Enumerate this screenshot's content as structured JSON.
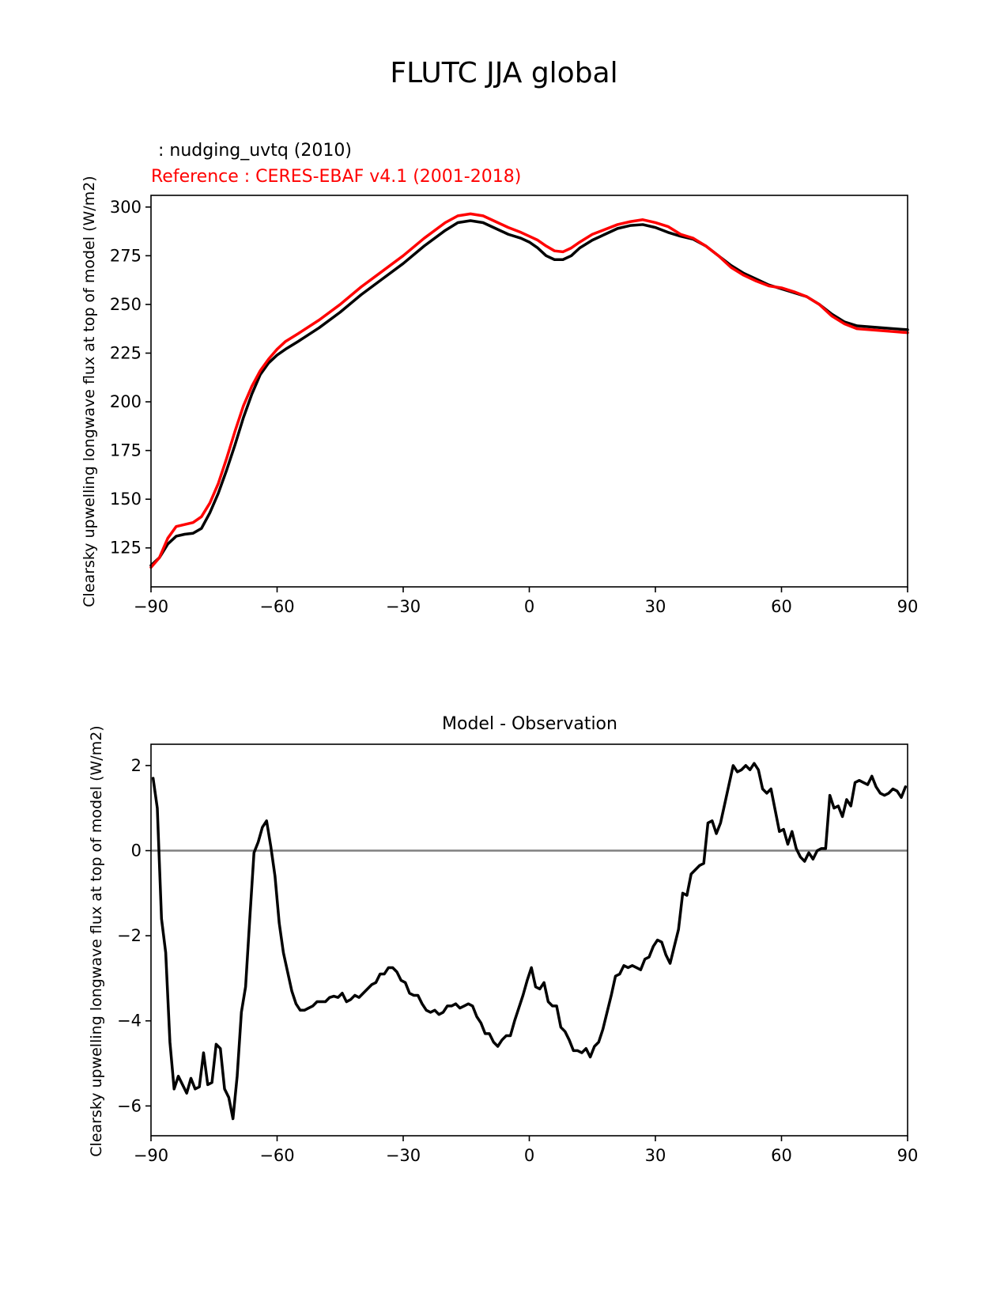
{
  "figure": {
    "title": "FLUTC JJA global",
    "test_label": " : nudging_uvtq (2010)",
    "reference_label": "Reference : CERES-EBAF v4.1 (2001-2018)"
  },
  "colors": {
    "test": "#000000",
    "reference": "#ff0000",
    "zero_line": "#808080",
    "axis": "#000000"
  },
  "chart_data": [
    {
      "type": "line",
      "title": "",
      "xlabel": "",
      "ylabel": "Clearsky upwelling longwave flux at top of model (W/m2)",
      "xlim": [
        -90,
        90
      ],
      "ylim": [
        105,
        306
      ],
      "xticks": [
        -90,
        -60,
        -30,
        0,
        30,
        60,
        90
      ],
      "xtick_labels": [
        "−90",
        "−60",
        "−30",
        "0",
        "30",
        "60",
        "90"
      ],
      "yticks": [
        125,
        150,
        175,
        200,
        225,
        250,
        275,
        300
      ],
      "ytick_labels": [
        "125",
        "150",
        "175",
        "200",
        "225",
        "250",
        "275",
        "300"
      ],
      "series": [
        {
          "name": "nudging_uvtq (2010)",
          "color": "#000000",
          "x": [
            -90,
            -88,
            -86,
            -84,
            -82,
            -80,
            -78,
            -76,
            -74,
            -72,
            -70,
            -68,
            -66,
            -64,
            -62,
            -60,
            -58,
            -55,
            -50,
            -45,
            -40,
            -35,
            -30,
            -25,
            -20,
            -17,
            -14,
            -11,
            -8,
            -5,
            -2,
            0,
            2,
            4,
            6,
            8,
            10,
            12,
            15,
            18,
            21,
            24,
            27,
            30,
            33,
            36,
            39,
            42,
            45,
            48,
            51,
            54,
            57,
            60,
            63,
            66,
            69,
            72,
            75,
            78,
            81,
            84,
            87,
            90
          ],
          "values": [
            116,
            120,
            127,
            131,
            132,
            132.5,
            135,
            143,
            153,
            165,
            178,
            192,
            204,
            214,
            220,
            224,
            227,
            231,
            238,
            246,
            255,
            263,
            271,
            280,
            288,
            292,
            293,
            292,
            289,
            286,
            284,
            282,
            279,
            275,
            273,
            273,
            275,
            279,
            283,
            286,
            289,
            290.5,
            291,
            289.5,
            287,
            285,
            283.5,
            280,
            275,
            270,
            266,
            263,
            260,
            258,
            256,
            254,
            250,
            245,
            241,
            239,
            238.5,
            238,
            237.5,
            237
          ]
        },
        {
          "name": "CERES-EBAF v4.1 (2001-2018)",
          "color": "#ff0000",
          "x": [
            -90,
            -88,
            -86,
            -84,
            -82,
            -80,
            -78,
            -76,
            -74,
            -72,
            -70,
            -68,
            -66,
            -64,
            -62,
            -60,
            -58,
            -55,
            -50,
            -45,
            -40,
            -35,
            -30,
            -25,
            -20,
            -17,
            -14,
            -11,
            -8,
            -5,
            -2,
            0,
            2,
            4,
            6,
            8,
            10,
            12,
            15,
            18,
            21,
            24,
            27,
            30,
            33,
            36,
            39,
            42,
            45,
            48,
            51,
            54,
            57,
            60,
            63,
            66,
            69,
            72,
            75,
            78,
            81,
            84,
            87,
            90
          ],
          "values": [
            115,
            120,
            130,
            136,
            137,
            138,
            141,
            148,
            158,
            171,
            185,
            198,
            208,
            216,
            222,
            227,
            231,
            235,
            242,
            250,
            259,
            267,
            275,
            284,
            292,
            295.5,
            296.5,
            295.5,
            292.5,
            289.5,
            287,
            285,
            283,
            280,
            277.5,
            277,
            279,
            282,
            286,
            288.5,
            291,
            292.5,
            293.5,
            292,
            290,
            286,
            284,
            280,
            275,
            269,
            265,
            262,
            259.5,
            258.5,
            256.5,
            254,
            250,
            244,
            240,
            237.5,
            237,
            236.5,
            236,
            235.5
          ]
        }
      ]
    },
    {
      "type": "line",
      "title": "Model - Observation",
      "xlabel": "",
      "ylabel": "Clearsky upwelling longwave flux at top of model (W/m2)",
      "xlim": [
        -90,
        90
      ],
      "ylim": [
        -6.7,
        2.5
      ],
      "xticks": [
        -90,
        -60,
        -30,
        0,
        30,
        60,
        90
      ],
      "xtick_labels": [
        "−90",
        "−60",
        "−30",
        "0",
        "30",
        "60",
        "90"
      ],
      "yticks": [
        -6,
        -4,
        -2,
        0,
        2
      ],
      "ytick_labels": [
        "−6",
        "−4",
        "−2",
        "0",
        "2"
      ],
      "zero_line": 0,
      "series": [
        {
          "name": "Model - Observation",
          "color": "#000000",
          "x": [
            -89.5,
            -88.5,
            -87.5,
            -86.5,
            -85.5,
            -84.5,
            -83.5,
            -82.5,
            -81.5,
            -80.5,
            -79.5,
            -78.5,
            -77.5,
            -76.5,
            -75.5,
            -74.5,
            -73.5,
            -72.5,
            -71.5,
            -70.5,
            -69.5,
            -68.5,
            -67.5,
            -66.5,
            -65.5,
            -64.5,
            -63.5,
            -62.5,
            -61.5,
            -60.5,
            -59.5,
            -58.5,
            -57.5,
            -56.5,
            -55.5,
            -54.5,
            -53.5,
            -52.5,
            -51.5,
            -50.5,
            -49.5,
            -48.5,
            -47.5,
            -46.5,
            -45.5,
            -44.5,
            -43.5,
            -42.5,
            -41.5,
            -40.5,
            -39.5,
            -38.5,
            -37.5,
            -36.5,
            -35.5,
            -34.5,
            -33.5,
            -32.5,
            -31.5,
            -30.5,
            -29.5,
            -28.5,
            -27.5,
            -26.5,
            -25.5,
            -24.5,
            -23.5,
            -22.5,
            -21.5,
            -20.5,
            -19.5,
            -18.5,
            -17.5,
            -16.5,
            -15.5,
            -14.5,
            -13.5,
            -12.5,
            -11.5,
            -10.5,
            -9.5,
            -8.5,
            -7.5,
            -6.5,
            -5.5,
            -4.5,
            -3.5,
            -2.5,
            -1.5,
            -0.5,
            0.5,
            1.5,
            2.5,
            3.5,
            4.5,
            5.5,
            6.5,
            7.5,
            8.5,
            9.5,
            10.5,
            11.5,
            12.5,
            13.5,
            14.5,
            15.5,
            16.5,
            17.5,
            18.5,
            19.5,
            20.5,
            21.5,
            22.5,
            23.5,
            24.5,
            25.5,
            26.5,
            27.5,
            28.5,
            29.5,
            30.5,
            31.5,
            32.5,
            33.5,
            34.5,
            35.5,
            36.5,
            37.5,
            38.5,
            39.5,
            40.5,
            41.5,
            42.5,
            43.5,
            44.5,
            45.5,
            46.5,
            47.5,
            48.5,
            49.5,
            50.5,
            51.5,
            52.5,
            53.5,
            54.5,
            55.5,
            56.5,
            57.5,
            58.5,
            59.5,
            60.5,
            61.5,
            62.5,
            63.5,
            64.5,
            65.5,
            66.5,
            67.5,
            68.5,
            69.5,
            70.5,
            71.5,
            72.5,
            73.5,
            74.5,
            75.5,
            76.5,
            77.5,
            78.5,
            79.5,
            80.5,
            81.5,
            82.5,
            83.5,
            84.5,
            85.5,
            86.5,
            87.5,
            88.5,
            89.5
          ],
          "values": [
            1.7,
            1.0,
            -1.6,
            -2.4,
            -4.5,
            -5.6,
            -5.3,
            -5.5,
            -5.7,
            -5.35,
            -5.6,
            -5.55,
            -4.75,
            -5.5,
            -5.45,
            -4.55,
            -4.65,
            -5.6,
            -5.8,
            -6.3,
            -5.3,
            -3.8,
            -3.2,
            -1.6,
            -0.05,
            0.2,
            0.55,
            0.7,
            0.1,
            -0.6,
            -1.7,
            -2.4,
            -2.85,
            -3.3,
            -3.6,
            -3.75,
            -3.75,
            -3.7,
            -3.65,
            -3.55,
            -3.55,
            -3.55,
            -3.45,
            -3.42,
            -3.45,
            -3.35,
            -3.55,
            -3.5,
            -3.4,
            -3.45,
            -3.35,
            -3.25,
            -3.15,
            -3.1,
            -2.9,
            -2.9,
            -2.75,
            -2.75,
            -2.85,
            -3.05,
            -3.1,
            -3.35,
            -3.4,
            -3.4,
            -3.6,
            -3.75,
            -3.8,
            -3.75,
            -3.85,
            -3.8,
            -3.65,
            -3.65,
            -3.6,
            -3.7,
            -3.65,
            -3.6,
            -3.65,
            -3.9,
            -4.05,
            -4.3,
            -4.3,
            -4.5,
            -4.6,
            -4.45,
            -4.35,
            -4.35,
            -4.0,
            -3.7,
            -3.4,
            -3.05,
            -2.75,
            -3.2,
            -3.25,
            -3.1,
            -3.55,
            -3.65,
            -3.65,
            -4.15,
            -4.25,
            -4.45,
            -4.7,
            -4.7,
            -4.75,
            -4.65,
            -4.85,
            -4.6,
            -4.5,
            -4.2,
            -3.8,
            -3.4,
            -2.95,
            -2.9,
            -2.7,
            -2.75,
            -2.7,
            -2.75,
            -2.8,
            -2.55,
            -2.5,
            -2.25,
            -2.1,
            -2.15,
            -2.45,
            -2.65,
            -2.25,
            -1.85,
            -1.0,
            -1.05,
            -0.55,
            -0.45,
            -0.35,
            -0.3,
            0.65,
            0.7,
            0.4,
            0.65,
            1.1,
            1.55,
            2.0,
            1.85,
            1.9,
            2.0,
            1.9,
            2.05,
            1.9,
            1.45,
            1.35,
            1.45,
            0.95,
            0.45,
            0.5,
            0.15,
            0.45,
            0.05,
            -0.15,
            -0.25,
            -0.05,
            -0.2,
            0.0,
            0.05,
            0.05,
            1.3,
            1.0,
            1.05,
            0.8,
            1.2,
            1.05,
            1.6,
            1.65,
            1.6,
            1.55,
            1.75,
            1.5,
            1.35,
            1.3,
            1.35,
            1.45,
            1.4,
            1.25,
            1.5
          ]
        }
      ]
    }
  ]
}
